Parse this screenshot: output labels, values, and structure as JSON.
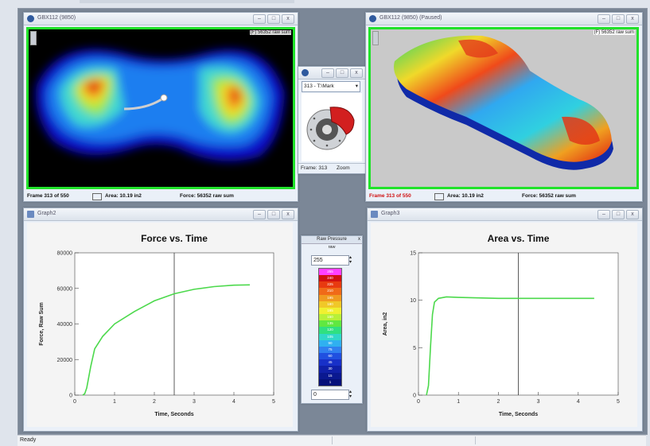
{
  "top_left": {
    "title": "GBX112 (9850)",
    "raw_sum": "(F) 56352 raw sum",
    "frame": "Frame 313 of 550",
    "area": "Area: 10.19 in2",
    "force": "Force: 56352 raw sum"
  },
  "top_right": {
    "title": "GBX112 (9850) (Paused)",
    "raw_sum": "(F) 56352 raw sum",
    "frame": "Frame 313 of 550",
    "area": "Area: 10.19 in2",
    "force": "Force: 56352 raw sum"
  },
  "thumb": {
    "select": "313 - T:\\Mark",
    "frame": "Frame: 313",
    "zoom": "Zoom"
  },
  "pressure": {
    "title": "Raw Pressure",
    "unit": "raw",
    "max": "255",
    "min": "0",
    "scale": [
      "255",
      "240",
      "225",
      "210",
      "195",
      "180",
      "165",
      "150",
      "135",
      "120",
      "105",
      "90",
      "75",
      "60",
      "45",
      "30",
      "15",
      "1"
    ]
  },
  "graph_left": {
    "title": "Graph2"
  },
  "graph_right": {
    "title": "Graph3"
  },
  "status": {
    "ready": "Ready"
  },
  "colors": {
    "frame_green": "#21e22a",
    "curve": "#4cd94c"
  },
  "chart_data": [
    {
      "type": "line",
      "title": "Force vs. Time",
      "xlabel": "Time, Seconds",
      "ylabel": "Force, Raw Sum",
      "xlim": [
        0,
        5
      ],
      "ylim": [
        0,
        80000
      ],
      "xticks": [
        "0",
        "1",
        "2",
        "3",
        "4",
        "5"
      ],
      "yticks": [
        "0",
        "20000",
        "40000",
        "60000",
        "80000"
      ],
      "cursor_x": 2.5,
      "series": [
        {
          "x": [
            0.2,
            0.25,
            0.3,
            0.4,
            0.5,
            0.7,
            1.0,
            1.5,
            2.0,
            2.5,
            3.0,
            3.5,
            4.0,
            4.4
          ],
          "y": [
            0,
            800,
            4000,
            16000,
            26000,
            33000,
            40000,
            47000,
            53000,
            57000,
            59500,
            61000,
            61800,
            62000
          ]
        }
      ]
    },
    {
      "type": "line",
      "title": "Area vs. Time",
      "xlabel": "Time, Seconds",
      "ylabel": "Area, in2",
      "xlim": [
        0,
        5
      ],
      "ylim": [
        0,
        15
      ],
      "xticks": [
        "0",
        "1",
        "2",
        "3",
        "4",
        "5"
      ],
      "yticks": [
        "0",
        "5",
        "10",
        "15"
      ],
      "cursor_x": 2.5,
      "series": [
        {
          "x": [
            0.2,
            0.25,
            0.3,
            0.35,
            0.4,
            0.5,
            0.7,
            1.0,
            2.0,
            3.0,
            4.0,
            4.4
          ],
          "y": [
            0,
            1,
            5,
            8.5,
            9.8,
            10.2,
            10.35,
            10.3,
            10.2,
            10.2,
            10.2,
            10.2
          ]
        }
      ]
    }
  ]
}
